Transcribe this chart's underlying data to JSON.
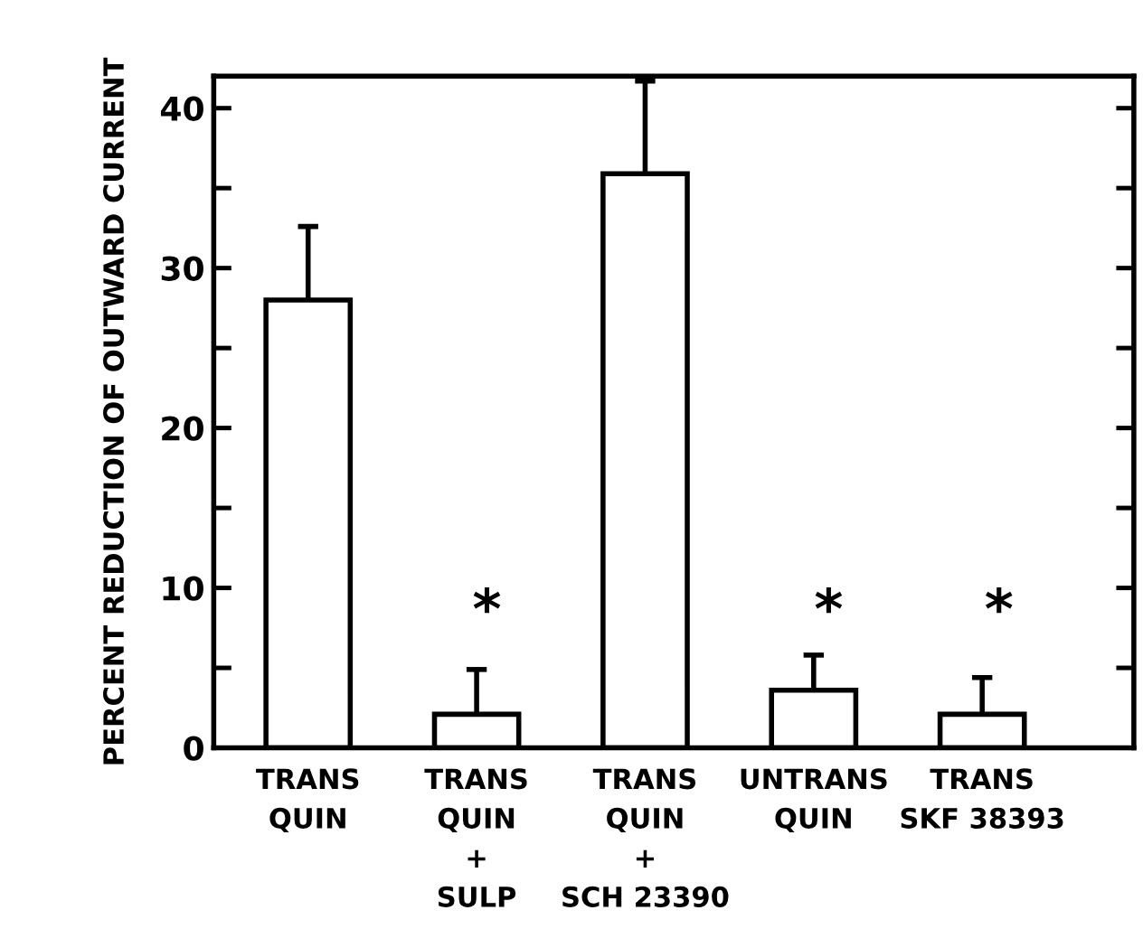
{
  "chart_data": {
    "type": "bar",
    "ylabel": "PERCENT REDUCTION OF OUTWARD CURRENT",
    "categories": [
      "TRANS\nQUIN",
      "TRANS\nQUIN\n+\nSULP",
      "TRANS\nQUIN\n+\nSCH 23390",
      "UNTRANS\nQUIN",
      "TRANS\nSKF 38393"
    ],
    "values": [
      28.0,
      2.1,
      35.9,
      3.6,
      2.1
    ],
    "errors": [
      [
        28.0,
        32.6
      ],
      [
        2.1,
        4.9
      ],
      [
        35.9,
        41.7
      ],
      [
        3.6,
        5.8
      ],
      [
        2.1,
        4.4
      ]
    ],
    "color": "#ffffff",
    "ylim": [
      0,
      42
    ],
    "yticks": [
      0,
      {
        "value": 5,
        "label": null
      },
      10,
      {
        "value": 15,
        "label": null
      },
      20,
      {
        "value": 25,
        "label": null
      },
      30,
      {
        "value": 35,
        "label": null
      },
      40
    ],
    "annotations": [
      "*",
      "*",
      "*"
    ],
    "grid": false,
    "legend": false
  }
}
